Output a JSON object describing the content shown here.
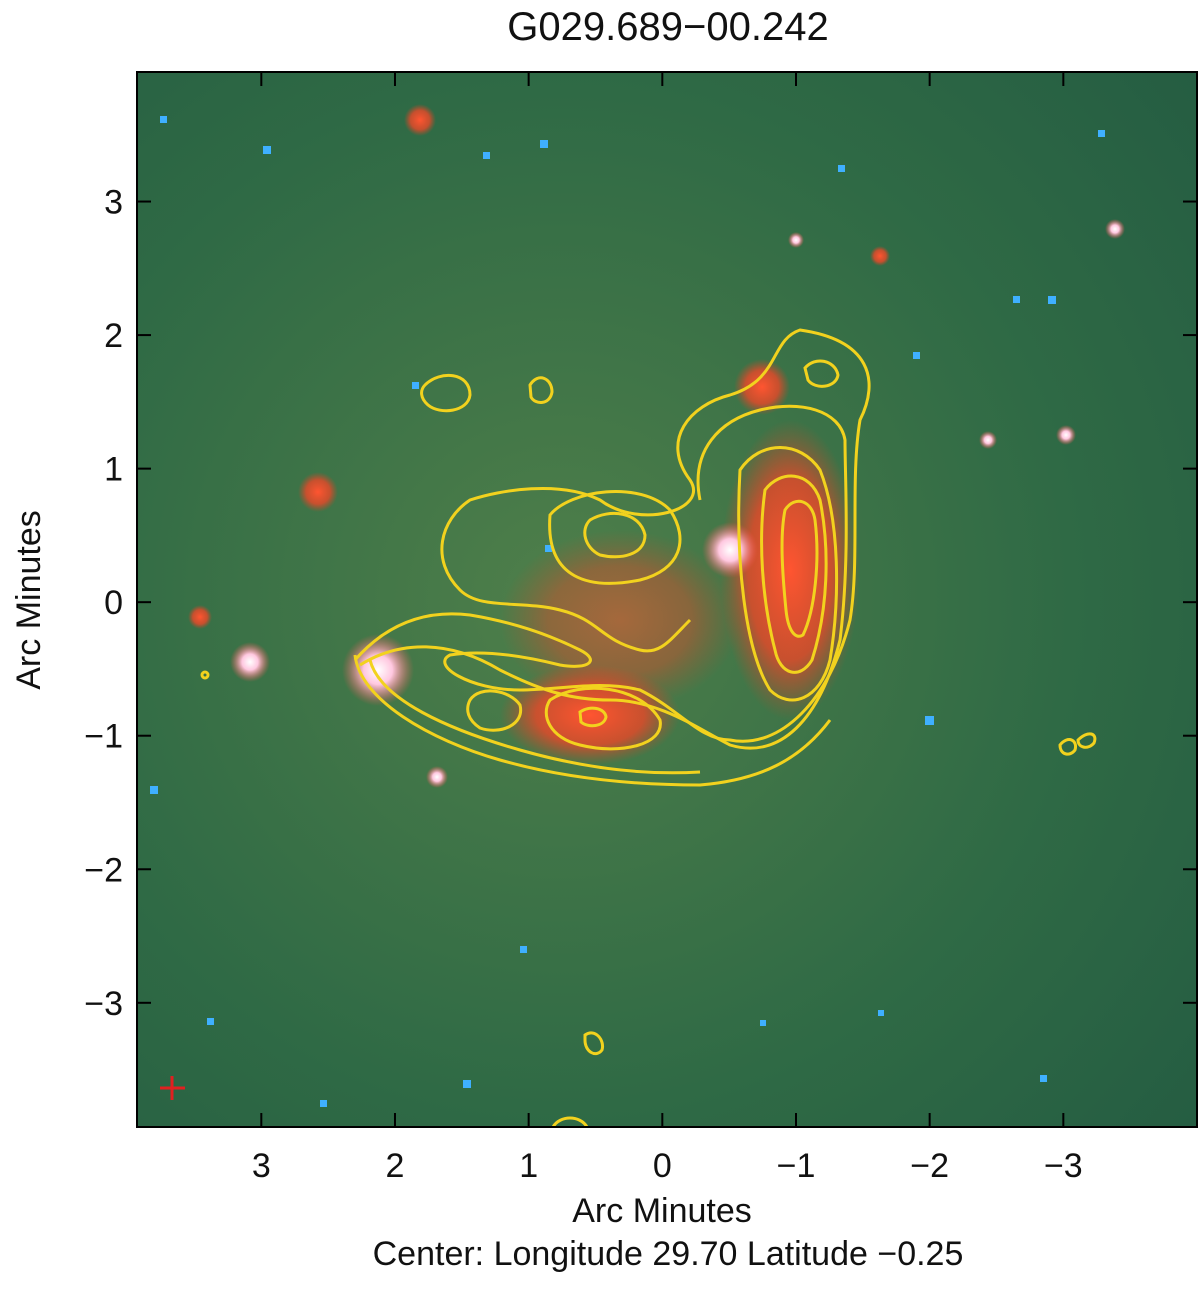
{
  "chart_data": {
    "type": "image",
    "title": "G029.689−00.242",
    "x_label": "Arc Minutes",
    "y_label": "Arc Minutes",
    "caption": "Center:  Longitude 29.70 Latitude −0.25",
    "xlim": [
      3.93,
      -4.0
    ],
    "ylim": [
      -3.93,
      3.97
    ],
    "xticks": [
      3,
      2,
      1,
      0,
      {
        "value": -1,
        "label": "−1"
      },
      {
        "value": -2,
        "label": "−2"
      },
      {
        "value": -3,
        "label": "−3"
      }
    ],
    "yticks": [
      {
        "value": -3,
        "label": "−3"
      },
      {
        "value": -2,
        "label": "−2"
      },
      {
        "value": -1,
        "label": "−1"
      },
      0,
      1,
      2,
      3
    ]
  }
}
